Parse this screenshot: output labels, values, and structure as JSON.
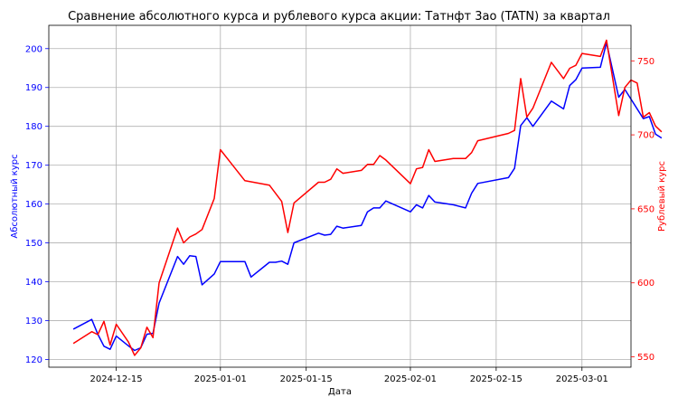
{
  "chart_data": {
    "type": "line",
    "title": "Сравнение абсолютного курса и рублевого курса акции: Татнфт 3ао (TATN) за квартал",
    "xlabel": "Дата",
    "ylabel_left": "Абсолютный курс",
    "ylabel_right": "Рублевый курс",
    "x_ticks": [
      "2024-12-15",
      "2025-01-01",
      "2025-01-15",
      "2025-02-01",
      "2025-02-15",
      "2025-03-01"
    ],
    "y_left_ticks": [
      120,
      130,
      140,
      150,
      160,
      170,
      180,
      190,
      200
    ],
    "y_right_ticks": [
      550,
      600,
      650,
      700,
      750
    ],
    "xlim": [
      "2024-12-04",
      "2025-03-09"
    ],
    "ylim_left": [
      118,
      206
    ],
    "ylim_right": [
      543,
      774
    ],
    "grid": true,
    "colors": {
      "left": "#0000ff",
      "right": "#ff0000"
    },
    "series": [
      {
        "axis": "left",
        "color": "#0000ff",
        "points": [
          [
            "2024-12-08",
            127.8
          ],
          [
            "2024-12-11",
            130.3
          ],
          [
            "2024-12-12",
            126.5
          ],
          [
            "2024-12-13",
            123.4
          ],
          [
            "2024-12-14",
            122.6
          ],
          [
            "2024-12-15",
            126.0
          ],
          [
            "2024-12-17",
            123.5
          ],
          [
            "2024-12-18",
            122.3
          ],
          [
            "2024-12-19",
            123.0
          ],
          [
            "2024-12-20",
            126.5
          ],
          [
            "2024-12-21",
            126.7
          ],
          [
            "2024-12-22",
            134.5
          ],
          [
            "2024-12-25",
            146.5
          ],
          [
            "2024-12-26",
            144.5
          ],
          [
            "2024-12-27",
            146.7
          ],
          [
            "2024-12-28",
            146.5
          ],
          [
            "2024-12-29",
            139.2
          ],
          [
            "2024-12-31",
            142.0
          ],
          [
            "2025-01-01",
            145.2
          ],
          [
            "2025-01-05",
            145.2
          ],
          [
            "2025-01-06",
            141.2
          ],
          [
            "2025-01-09",
            145.0
          ],
          [
            "2025-01-10",
            145.0
          ],
          [
            "2025-01-11",
            145.3
          ],
          [
            "2025-01-12",
            144.5
          ],
          [
            "2025-01-13",
            150.0
          ],
          [
            "2025-01-17",
            152.5
          ],
          [
            "2025-01-18",
            152.0
          ],
          [
            "2025-01-19",
            152.2
          ],
          [
            "2025-01-20",
            154.3
          ],
          [
            "2025-01-21",
            153.8
          ],
          [
            "2025-01-24",
            154.5
          ],
          [
            "2025-01-25",
            158.0
          ],
          [
            "2025-01-26",
            159.0
          ],
          [
            "2025-01-27",
            159.0
          ],
          [
            "2025-01-28",
            160.8
          ],
          [
            "2025-02-01",
            158.0
          ],
          [
            "2025-02-02",
            159.8
          ],
          [
            "2025-02-03",
            159.0
          ],
          [
            "2025-02-04",
            162.2
          ],
          [
            "2025-02-05",
            160.5
          ],
          [
            "2025-02-08",
            159.8
          ],
          [
            "2025-02-10",
            159.0
          ],
          [
            "2025-02-11",
            162.8
          ],
          [
            "2025-02-12",
            165.3
          ],
          [
            "2025-02-17",
            166.8
          ],
          [
            "2025-02-18",
            169.2
          ],
          [
            "2025-02-19",
            180.2
          ],
          [
            "2025-02-20",
            182.2
          ],
          [
            "2025-02-21",
            180.0
          ],
          [
            "2025-02-24",
            186.5
          ],
          [
            "2025-02-26",
            184.5
          ],
          [
            "2025-02-27",
            190.5
          ],
          [
            "2025-02-28",
            192.0
          ],
          [
            "2025-03-01",
            195.0
          ],
          [
            "2025-03-04",
            195.2
          ],
          [
            "2025-03-05",
            201.5
          ],
          [
            "2025-03-07",
            187.5
          ],
          [
            "2025-03-08",
            189.5
          ],
          [
            "2025-03-11",
            182.0
          ],
          [
            "2025-03-12",
            182.5
          ],
          [
            "2025-03-13",
            178.0
          ],
          [
            "2025-03-14",
            177.0
          ]
        ]
      },
      {
        "axis": "right",
        "color": "#ff0000",
        "points": [
          [
            "2024-12-08",
            559
          ],
          [
            "2024-12-11",
            567
          ],
          [
            "2024-12-12",
            565
          ],
          [
            "2024-12-13",
            574
          ],
          [
            "2024-12-14",
            558
          ],
          [
            "2024-12-15",
            572
          ],
          [
            "2024-12-17",
            560
          ],
          [
            "2024-12-18",
            551
          ],
          [
            "2024-12-19",
            556
          ],
          [
            "2024-12-20",
            570
          ],
          [
            "2024-12-21",
            563
          ],
          [
            "2024-12-22",
            600
          ],
          [
            "2024-12-25",
            637
          ],
          [
            "2024-12-26",
            627
          ],
          [
            "2024-12-27",
            631
          ],
          [
            "2024-12-28",
            633
          ],
          [
            "2024-12-29",
            636
          ],
          [
            "2024-12-31",
            657
          ],
          [
            "2025-01-01",
            690
          ],
          [
            "2025-01-05",
            669
          ],
          [
            "2025-01-09",
            666
          ],
          [
            "2025-01-11",
            655
          ],
          [
            "2025-01-12",
            634
          ],
          [
            "2025-01-13",
            654
          ],
          [
            "2025-01-17",
            668
          ],
          [
            "2025-01-18",
            668
          ],
          [
            "2025-01-19",
            670
          ],
          [
            "2025-01-20",
            677
          ],
          [
            "2025-01-21",
            674
          ],
          [
            "2025-01-24",
            676
          ],
          [
            "2025-01-25",
            680
          ],
          [
            "2025-01-26",
            680
          ],
          [
            "2025-01-27",
            686
          ],
          [
            "2025-01-28",
            683
          ],
          [
            "2025-02-01",
            667
          ],
          [
            "2025-02-02",
            677
          ],
          [
            "2025-02-03",
            678
          ],
          [
            "2025-02-04",
            690
          ],
          [
            "2025-02-05",
            682
          ],
          [
            "2025-02-08",
            684
          ],
          [
            "2025-02-10",
            684
          ],
          [
            "2025-02-11",
            688
          ],
          [
            "2025-02-12",
            696
          ],
          [
            "2025-02-17",
            701
          ],
          [
            "2025-02-18",
            703
          ],
          [
            "2025-02-19",
            738
          ],
          [
            "2025-02-20",
            712
          ],
          [
            "2025-02-21",
            718
          ],
          [
            "2025-02-24",
            749
          ],
          [
            "2025-02-26",
            738
          ],
          [
            "2025-02-27",
            745
          ],
          [
            "2025-02-28",
            747
          ],
          [
            "2025-03-01",
            755
          ],
          [
            "2025-03-04",
            753
          ],
          [
            "2025-03-05",
            764
          ],
          [
            "2025-03-07",
            713
          ],
          [
            "2025-03-08",
            732
          ],
          [
            "2025-03-09",
            737
          ],
          [
            "2025-03-10",
            735
          ],
          [
            "2025-03-11",
            712
          ],
          [
            "2025-03-12",
            715
          ],
          [
            "2025-03-13",
            706
          ],
          [
            "2025-03-14",
            702
          ]
        ]
      }
    ]
  }
}
